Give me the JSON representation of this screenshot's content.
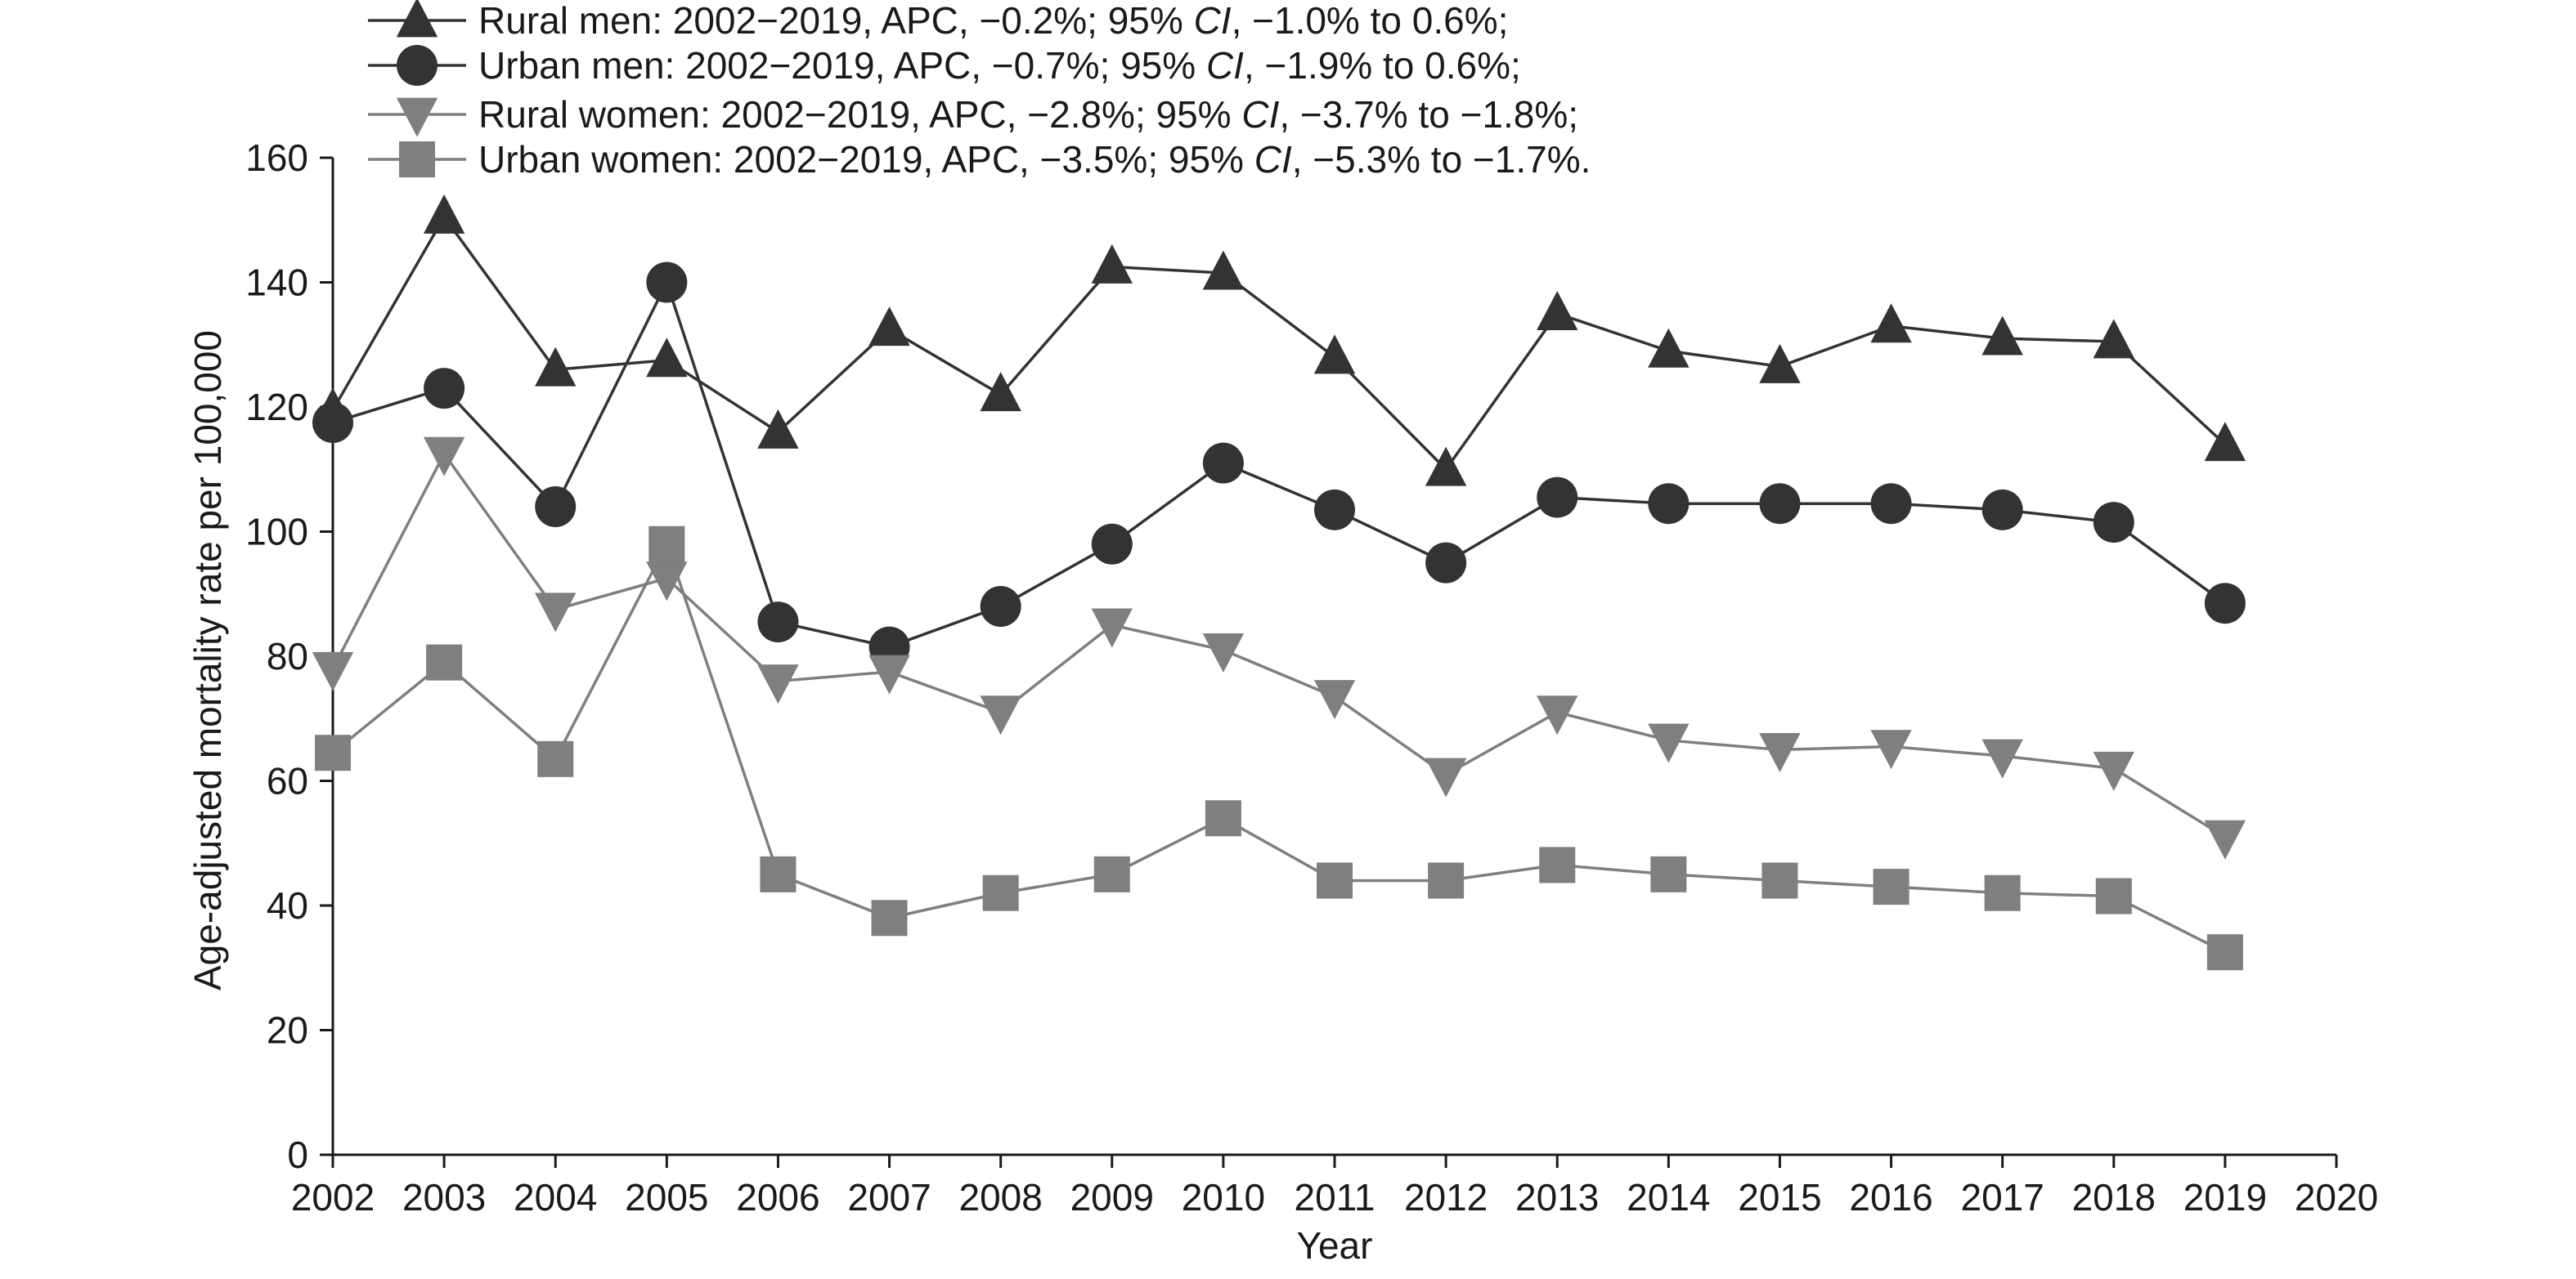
{
  "chart_data": {
    "type": "line",
    "title": "",
    "xlabel": "Year",
    "ylabel": "Age-adjusted mortality rate per 100,000",
    "xlim": [
      2002,
      2020
    ],
    "ylim": [
      0,
      160
    ],
    "x_ticks": [
      2002,
      2003,
      2004,
      2005,
      2006,
      2007,
      2008,
      2009,
      2010,
      2011,
      2012,
      2013,
      2014,
      2015,
      2016,
      2017,
      2018,
      2019,
      2020
    ],
    "y_ticks": [
      0,
      20,
      40,
      60,
      80,
      100,
      120,
      140,
      160
    ],
    "grid": false,
    "legend_position": "top-left",
    "x": [
      2002,
      2003,
      2004,
      2005,
      2006,
      2007,
      2008,
      2009,
      2010,
      2011,
      2012,
      2013,
      2014,
      2015,
      2016,
      2017,
      2018,
      2019
    ],
    "series": [
      {
        "name": "Rural men",
        "legend_parts": [
          "Rural men: 2002−2019, APC, −0.2%; 95% ",
          "CI",
          ", −1.0% to 0.6%;"
        ],
        "marker": "triangle-up",
        "color": "#333333",
        "values": [
          119.5,
          150.5,
          126,
          127.5,
          116,
          132.5,
          122,
          142.5,
          141.5,
          128,
          110,
          135,
          129,
          126.5,
          133,
          131,
          130.5,
          114
        ]
      },
      {
        "name": "Urban men",
        "legend_parts": [
          "Urban men: 2002−2019, APC, −0.7%; 95% ",
          "CI",
          ", −1.9% to 0.6%;"
        ],
        "marker": "circle",
        "color": "#333333",
        "values": [
          117.5,
          123,
          104,
          140,
          85.5,
          81.5,
          88,
          98,
          111,
          103.5,
          95,
          105.5,
          104.5,
          104.5,
          104.5,
          103.5,
          101.5,
          88.5
        ]
      },
      {
        "name": "Rural women",
        "legend_parts": [
          "Rural women: 2002−2019, APC, −2.8%; 95% ",
          "CI",
          ", −3.7% to −1.8%;"
        ],
        "marker": "triangle-down",
        "color": "#7f7f7f",
        "values": [
          78,
          112.5,
          87.5,
          92.5,
          76,
          77.5,
          71,
          85,
          81,
          73.5,
          61,
          71,
          66.5,
          65,
          65.5,
          64,
          62,
          51
        ]
      },
      {
        "name": "Urban women",
        "legend_parts": [
          "Urban women: 2002−2019, APC, −3.5%; 95% ",
          "CI",
          ", −5.3% to −1.7%."
        ],
        "marker": "square",
        "color": "#7f7f7f",
        "values": [
          64.5,
          79,
          63.5,
          98,
          45,
          38,
          42,
          45,
          54,
          44,
          44,
          46.5,
          45,
          44,
          43,
          42,
          41.5,
          32.5
        ]
      }
    ]
  }
}
